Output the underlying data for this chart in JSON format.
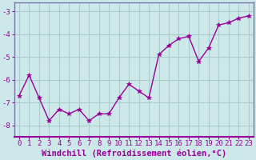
{
  "x": [
    0,
    1,
    2,
    3,
    4,
    5,
    6,
    7,
    8,
    9,
    10,
    11,
    12,
    13,
    14,
    15,
    16,
    17,
    18,
    19,
    20,
    21,
    22,
    23
  ],
  "y": [
    -6.7,
    -5.8,
    -6.8,
    -7.8,
    -7.3,
    -7.5,
    -7.3,
    -7.8,
    -7.5,
    -7.5,
    -6.8,
    -6.2,
    -6.5,
    -6.8,
    -4.9,
    -4.5,
    -4.2,
    -4.1,
    -5.2,
    -4.6,
    -3.6,
    -3.5,
    -3.3,
    -3.2
  ],
  "line_color": "#990099",
  "marker": "*",
  "markersize": 4,
  "linewidth": 1,
  "bg_color": "#cce8e8",
  "grid_color": "#aacccc",
  "axis_color": "#7777aa",
  "xlabel": "Windchill (Refroidissement éolien,°C)",
  "xlabel_fontsize": 7.5,
  "tick_fontsize": 6.5,
  "ylim": [
    -8.5,
    -2.6
  ],
  "xlim": [
    -0.5,
    23.5
  ],
  "yticks": [
    -8,
    -7,
    -6,
    -5,
    -4,
    -3
  ],
  "xticks": [
    0,
    1,
    2,
    3,
    4,
    5,
    6,
    7,
    8,
    9,
    10,
    11,
    12,
    13,
    14,
    15,
    16,
    17,
    18,
    19,
    20,
    21,
    22,
    23
  ],
  "figsize": [
    3.2,
    2.0
  ],
  "dpi": 100
}
